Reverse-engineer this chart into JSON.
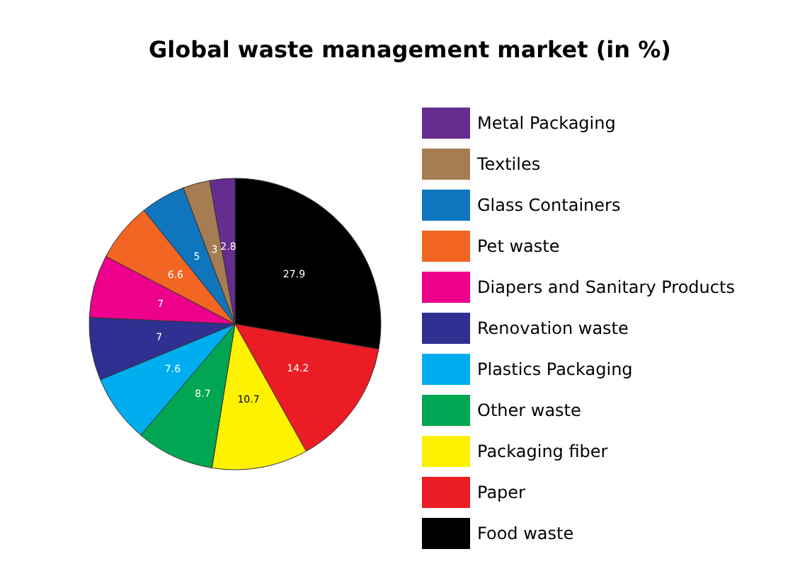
{
  "chart_data": {
    "type": "pie",
    "title": "Global waste management market (in %)",
    "categories": [
      "Food waste",
      "Paper",
      "Packaging fiber",
      "Other waste",
      "Plastics Packaging",
      "Renovation waste",
      "Diapers and Sanitary Products",
      "Pet waste",
      "Glass Containers",
      "Textiles",
      "Metal Packaging"
    ],
    "values": [
      27.9,
      14.2,
      10.7,
      8.7,
      7.6,
      7,
      7,
      6.6,
      5,
      3,
      2.8
    ],
    "colors": [
      "#000000",
      "#ec1c24",
      "#fff200",
      "#00a651",
      "#00aeef",
      "#2e3192",
      "#ec008c",
      "#f26522",
      "#0f75bc",
      "#a67c52",
      "#662d91"
    ],
    "data_labels": true,
    "legend": "right"
  }
}
